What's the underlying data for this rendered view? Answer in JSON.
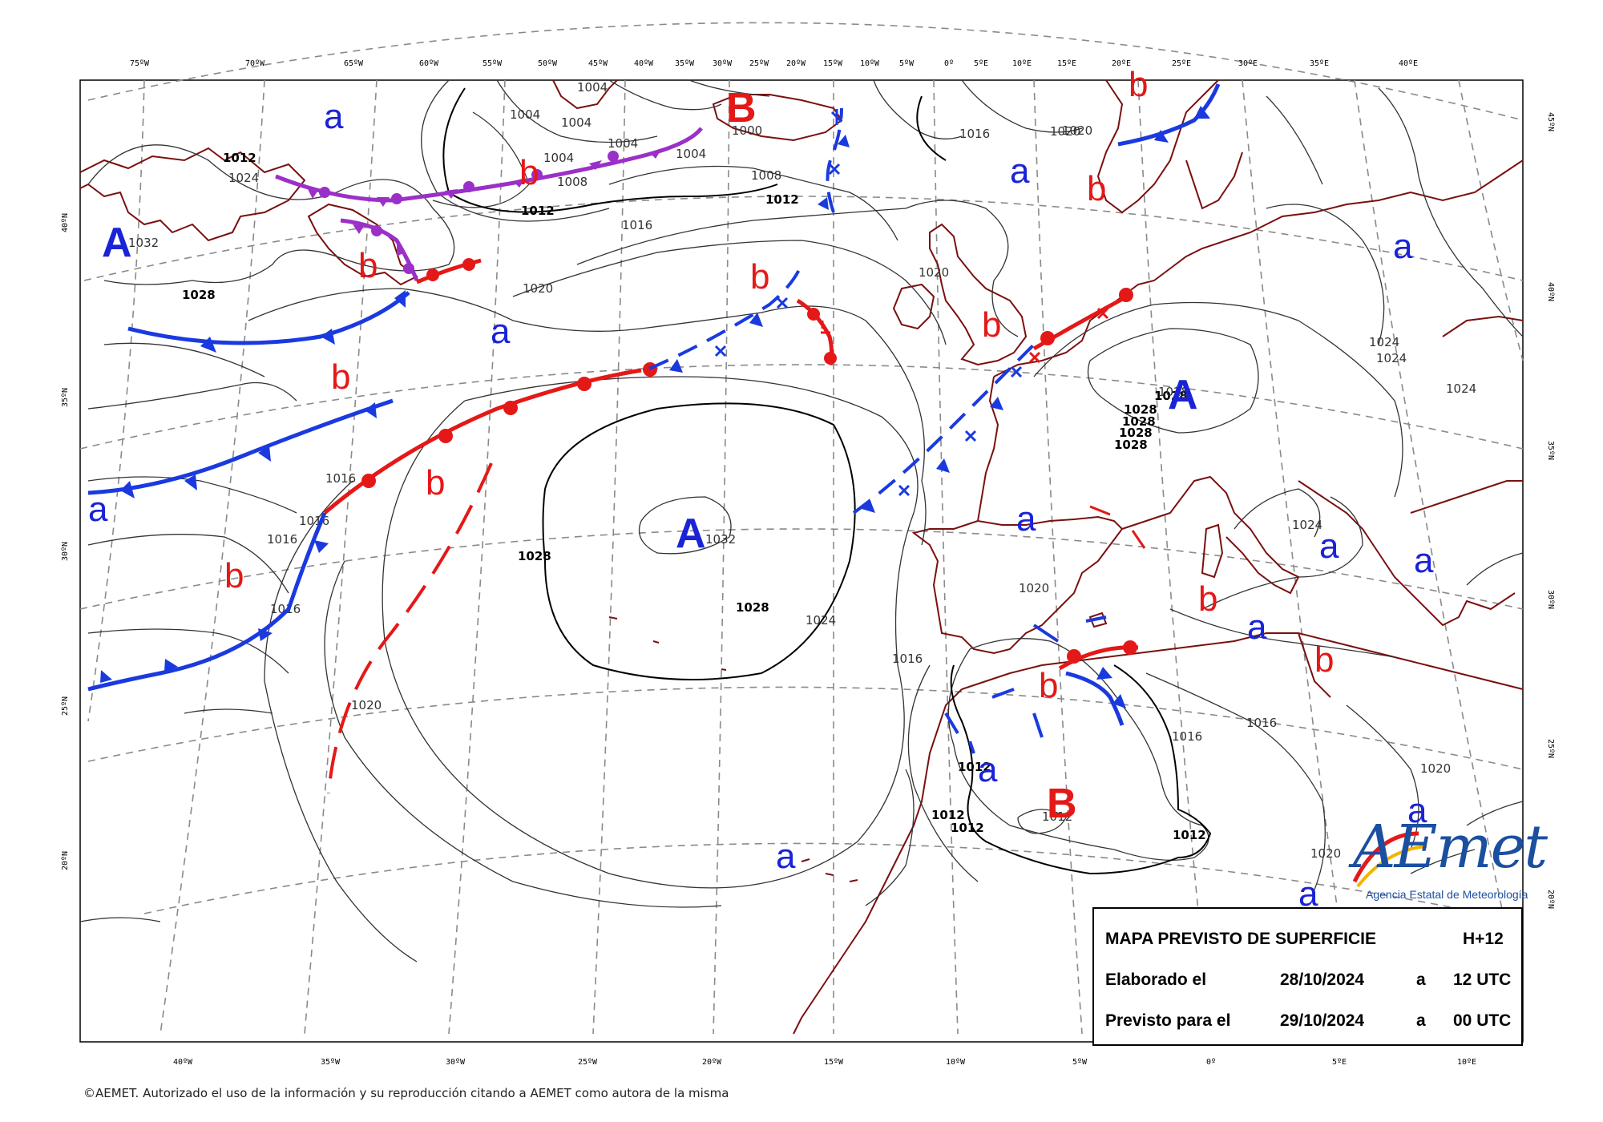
{
  "legend": {
    "title": "MAPA PREVISTO DE SUPERFICIE",
    "horizon": "H+12",
    "issued_label": "Elaborado el",
    "issued_date": "28/10/2024",
    "issued_sep": "a",
    "issued_time": "12 UTC",
    "valid_label": "Previsto para el",
    "valid_date": "29/10/2024",
    "valid_sep": "a",
    "valid_time": "00 UTC"
  },
  "logo": {
    "word": "AEmet",
    "subtitle": "Agencia Estatal de Meteorología"
  },
  "copyright": "©AEMET. Autorizado el uso de la información y su reproducción citando a AEMET como autora de la misma",
  "axes": {
    "top_ticks": [
      "75ºW",
      "70ºW",
      "65ºW",
      "60ºW",
      "55ºW",
      "50ºW",
      "45ºW",
      "40ºW",
      "35ºW",
      "30ºW",
      "25ºW",
      "20ºW",
      "15ºW",
      "10ºW",
      "5ºW",
      "0º",
      "5ºE",
      "10ºE",
      "15ºE",
      "20ºE",
      "25ºE",
      "30ºE",
      "35ºE",
      "40ºE"
    ],
    "bottom_ticks": [
      "40ºW",
      "35ºW",
      "30ºW",
      "25ºW",
      "20ºW",
      "15ºW",
      "10ºW",
      "5ºW",
      "0º",
      "5ºE",
      "10ºE"
    ],
    "left_ticks": [
      "40ºN",
      "35ºN",
      "30ºN",
      "25ºN",
      "20ºN"
    ],
    "right_ticks": [
      "45ºN",
      "40ºN",
      "35ºN",
      "30ºN",
      "25ºN",
      "20ºN"
    ]
  },
  "pressure_centers": [
    {
      "kind": "A",
      "label": "A"
    },
    {
      "kind": "A",
      "label": "A"
    },
    {
      "kind": "A",
      "label": "A"
    },
    {
      "kind": "B",
      "label": "B"
    },
    {
      "kind": "B",
      "label": "B"
    }
  ],
  "secondary_labels": {
    "high": "a",
    "low": "b"
  },
  "isobar_labels": [
    "1004",
    "1004",
    "1004",
    "1004",
    "1004",
    "1004",
    "1000",
    "1008",
    "1008",
    "1012",
    "1012",
    "1012",
    "1016",
    "1016",
    "1016",
    "1016",
    "1016",
    "1016",
    "1016",
    "1016",
    "1016",
    "1020",
    "1020",
    "1020",
    "1020",
    "1020",
    "1020",
    "1020",
    "1020",
    "1024",
    "1024",
    "1024",
    "1024",
    "1024",
    "1024",
    "1028",
    "1028",
    "1028",
    "1028",
    "1028",
    "1028",
    "1028",
    "1028",
    "1028",
    "1032",
    "1032",
    "1012",
    "1012",
    "1012",
    "1012",
    "1012"
  ],
  "colors": {
    "high_label": "#1a23d6",
    "low_label": "#e51818",
    "cold_front": "#1a3ae0",
    "warm_front": "#e51818",
    "occluded_front": "#9b30c8",
    "coastline": "#7a1010",
    "grid": "#777777",
    "isobar": "#333333"
  }
}
